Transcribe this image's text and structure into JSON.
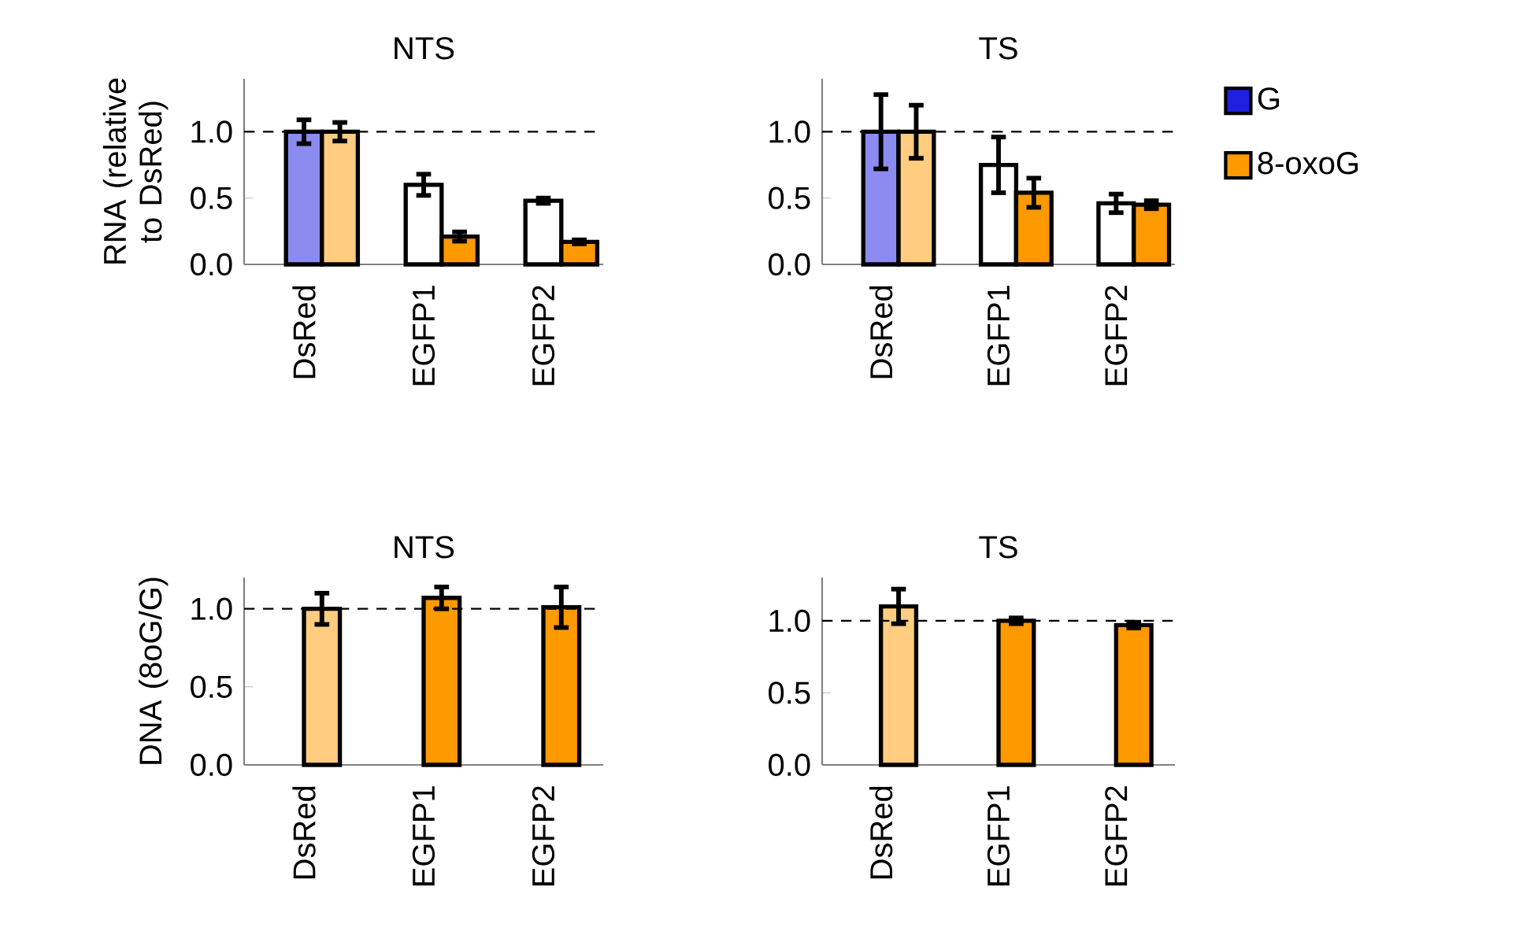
{
  "chart_data": [
    {
      "type": "bar",
      "title": "NTS",
      "ylabel": "RNA (relative to DsRed)",
      "categories": [
        "DsRed",
        "EGFP1",
        "EGFP2"
      ],
      "series": [
        {
          "color": "#2020e0",
          "colors": [
            "#8c8cf0",
            "#ffffff",
            "#ffffff"
          ],
          "values": [
            1.0,
            0.6,
            0.48
          ],
          "errors": [
            0.09,
            0.08,
            0.02
          ]
        },
        {
          "color": "#ff9900",
          "colors": [
            "#ffcc80",
            "#ff9900",
            "#ff9900"
          ],
          "values": [
            1.0,
            0.21,
            0.17
          ],
          "errors": [
            0.07,
            0.035,
            0.015
          ]
        }
      ],
      "ylim": [
        0,
        1.4
      ],
      "yticks": [
        {
          "value": 0,
          "label": "0.0"
        },
        {
          "value": 0.5,
          "label": "0.5"
        },
        {
          "value": 1,
          "label": "1.0"
        }
      ],
      "ref_lines": [
        {
          "axis": "y",
          "value": 1,
          "line_style": "dashed",
          "color": "#000000"
        }
      ],
      "legend": false
    },
    {
      "type": "bar",
      "title": "TS",
      "categories": [
        "DsRed",
        "EGFP1",
        "EGFP2"
      ],
      "series": [
        {
          "name": "G",
          "color": "#2020e0",
          "colors": [
            "#8c8cf0",
            "#ffffff",
            "#ffffff"
          ],
          "values": [
            1.0,
            0.75,
            0.46
          ],
          "errors": [
            0.28,
            0.21,
            0.07
          ]
        },
        {
          "name": "8-oxoG",
          "color": "#ff9900",
          "colors": [
            "#ffcc80",
            "#ff9900",
            "#ff9900"
          ],
          "values": [
            1.0,
            0.54,
            0.45
          ],
          "errors": [
            0.2,
            0.11,
            0.03
          ]
        }
      ],
      "ylim": [
        0,
        1.4
      ],
      "yticks": [
        {
          "value": 0,
          "label": "0.0"
        },
        {
          "value": 0.5,
          "label": "0.5"
        },
        {
          "value": 1,
          "label": "1.0"
        }
      ],
      "ref_lines": [
        {
          "axis": "y",
          "value": 1,
          "line_style": "dashed",
          "color": "#000000"
        }
      ],
      "legend": "right"
    },
    {
      "type": "bar",
      "title": "NTS",
      "ylabel": "DNA (8oG/G)",
      "categories": [
        "DsRed",
        "EGFP1",
        "EGFP2"
      ],
      "series": [
        {
          "color": "#ff9900",
          "colors": [
            "#ffcc80",
            "#ff9900",
            "#ff9900"
          ],
          "values": [
            1.0,
            1.07,
            1.01
          ],
          "errors": [
            0.1,
            0.07,
            0.13
          ]
        }
      ],
      "ylim": [
        0,
        1.2
      ],
      "yticks": [
        {
          "value": 0,
          "label": "0.0"
        },
        {
          "value": 0.5,
          "label": "0.5"
        },
        {
          "value": 1,
          "label": "1.0"
        }
      ],
      "ref_lines": [
        {
          "axis": "y",
          "value": 1,
          "line_style": "dashed",
          "color": "#000000"
        }
      ],
      "legend": false
    },
    {
      "type": "bar",
      "title": "TS",
      "categories": [
        "DsRed",
        "EGFP1",
        "EGFP2"
      ],
      "series": [
        {
          "color": "#ff9900",
          "colors": [
            "#ffcc80",
            "#ff9900",
            "#ff9900"
          ],
          "values": [
            1.1,
            1.0,
            0.97
          ],
          "errors": [
            0.12,
            0.02,
            0.02
          ]
        }
      ],
      "ylim": [
        0,
        1.3
      ],
      "yticks": [
        {
          "value": 0,
          "label": "0.0"
        },
        {
          "value": 0.5,
          "label": "0.5"
        },
        {
          "value": 1,
          "label": "1.0"
        }
      ],
      "ref_lines": [
        {
          "axis": "y",
          "value": 1,
          "line_style": "dashed",
          "color": "#000000"
        }
      ],
      "legend": false
    }
  ]
}
